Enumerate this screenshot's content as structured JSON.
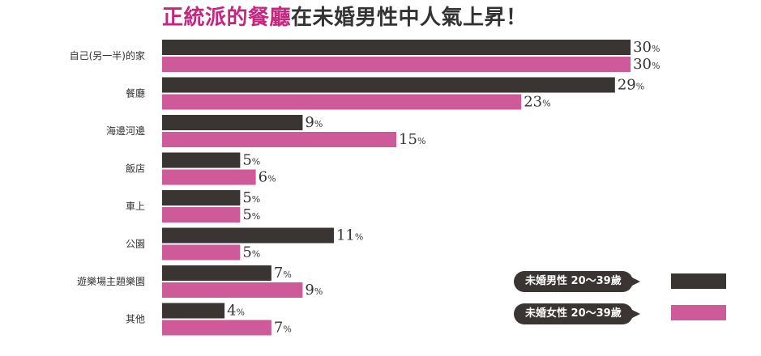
{
  "title": {
    "highlight": "正統派的餐廳",
    "rest": "在未婚男性中人氣上昇！"
  },
  "legend": [
    {
      "label": "未婚男性 20～39歲",
      "color": "#3a3433"
    },
    {
      "label": "未婚女性 20～39歲",
      "color": "#cf5a99"
    }
  ],
  "chart_data": {
    "type": "bar",
    "orientation": "horizontal",
    "unit": "%",
    "xlim": [
      0,
      30
    ],
    "categories": [
      "自己(另一半)的家",
      "餐廳",
      "海邊河邊",
      "飯店",
      "車上",
      "公園",
      "遊樂場主題樂園",
      "其他"
    ],
    "series": [
      {
        "name": "未婚男性 20～39歲",
        "color": "#3a3433",
        "values": [
          30,
          29,
          9,
          5,
          5,
          11,
          7,
          4
        ]
      },
      {
        "name": "未婚女性 20～39歲",
        "color": "#cf5a99",
        "values": [
          30,
          23,
          15,
          6,
          5,
          5,
          9,
          7
        ]
      }
    ]
  }
}
